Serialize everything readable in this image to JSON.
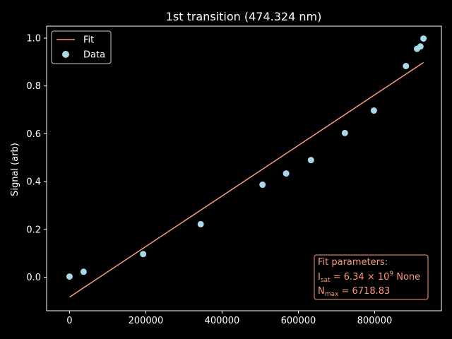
{
  "chart_data": {
    "type": "scatter",
    "title": "1st transition (474.324 nm)",
    "xlabel": "",
    "ylabel": "Signal (arb)",
    "xlim": [
      -60000,
      975000
    ],
    "ylim": [
      -0.14,
      1.05
    ],
    "x_ticks": [
      0,
      200000,
      400000,
      600000,
      800000
    ],
    "x_tick_labels": [
      "0",
      "200000",
      "400000",
      "600000",
      "800000"
    ],
    "y_ticks": [
      0.0,
      0.2,
      0.4,
      0.6,
      0.8,
      1.0
    ],
    "y_tick_labels": [
      "0.0",
      "0.2",
      "0.4",
      "0.6",
      "0.8",
      "1.0"
    ],
    "grid": false,
    "legend": {
      "placement": "top-left",
      "entries": [
        {
          "label": "Fit",
          "kind": "line",
          "color": "#fa9a7b"
        },
        {
          "label": "Data",
          "kind": "marker",
          "color": "#a9d8ea"
        }
      ]
    },
    "series": [
      {
        "name": "Data",
        "kind": "scatter",
        "color": "#a9d8ea",
        "x": [
          0,
          37000,
          193000,
          344000,
          506000,
          568000,
          633000,
          722000,
          798000,
          882000,
          911000,
          920000,
          928000
        ],
        "y": [
          0.003,
          0.023,
          0.097,
          0.222,
          0.387,
          0.434,
          0.49,
          0.603,
          0.697,
          0.883,
          0.955,
          0.965,
          0.998
        ]
      },
      {
        "name": "Fit",
        "kind": "line",
        "color": "#fa9a7b",
        "x": [
          0,
          928000
        ],
        "y": [
          -0.083,
          0.898
        ]
      }
    ],
    "annotation": {
      "title": "Fit parameters:",
      "line1_main": "I",
      "line1_sub": "sat",
      "line1_eq": " = 6.34 × 10",
      "line1_sup": "9",
      "line1_unit": " None",
      "line2_main": "N",
      "line2_sub": "max",
      "line2_rest": " = 6718.83",
      "color": "#fa9a7b"
    }
  }
}
